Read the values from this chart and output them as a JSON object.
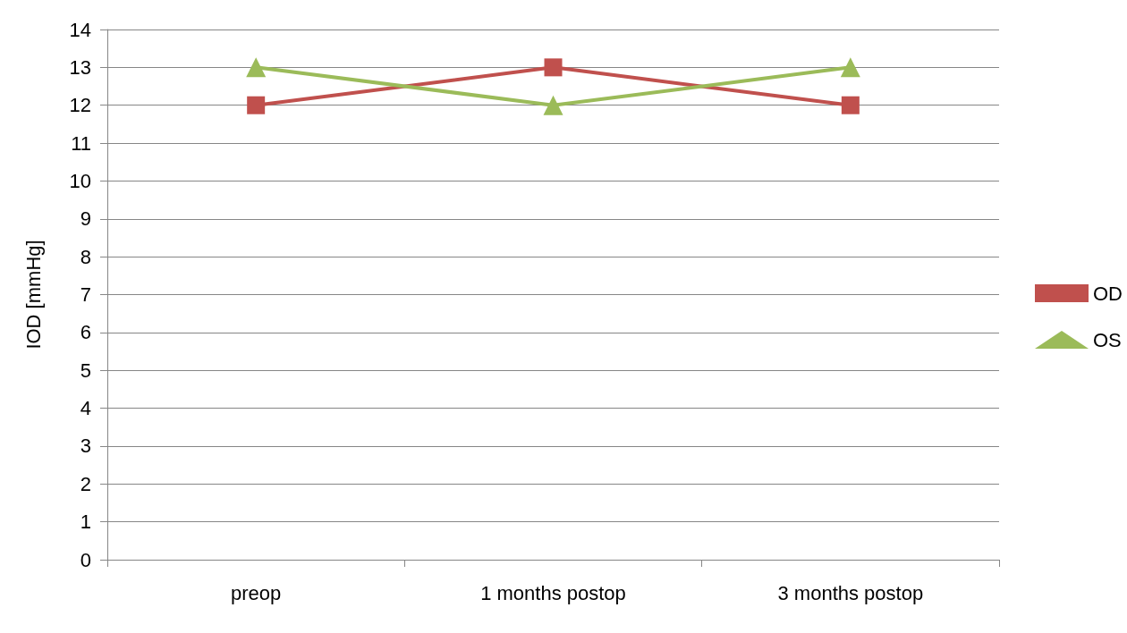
{
  "chart_data": {
    "type": "line",
    "ylabel": "IOD [mmHg]",
    "categories": [
      "preop",
      "1 months postop",
      "3 months postop"
    ],
    "series": [
      {
        "name": "OD",
        "color": "#c0504d",
        "values": [
          12,
          13,
          12
        ],
        "marker": "square"
      },
      {
        "name": "OS",
        "color": "#9bbb59",
        "values": [
          13,
          12,
          13
        ],
        "marker": "triangle"
      }
    ],
    "ylim": [
      0,
      14
    ],
    "yticks": [
      0,
      1,
      2,
      3,
      4,
      5,
      6,
      7,
      8,
      9,
      10,
      11,
      12,
      13,
      14
    ],
    "grid": "y",
    "legend": "right",
    "line_style": "solid"
  }
}
